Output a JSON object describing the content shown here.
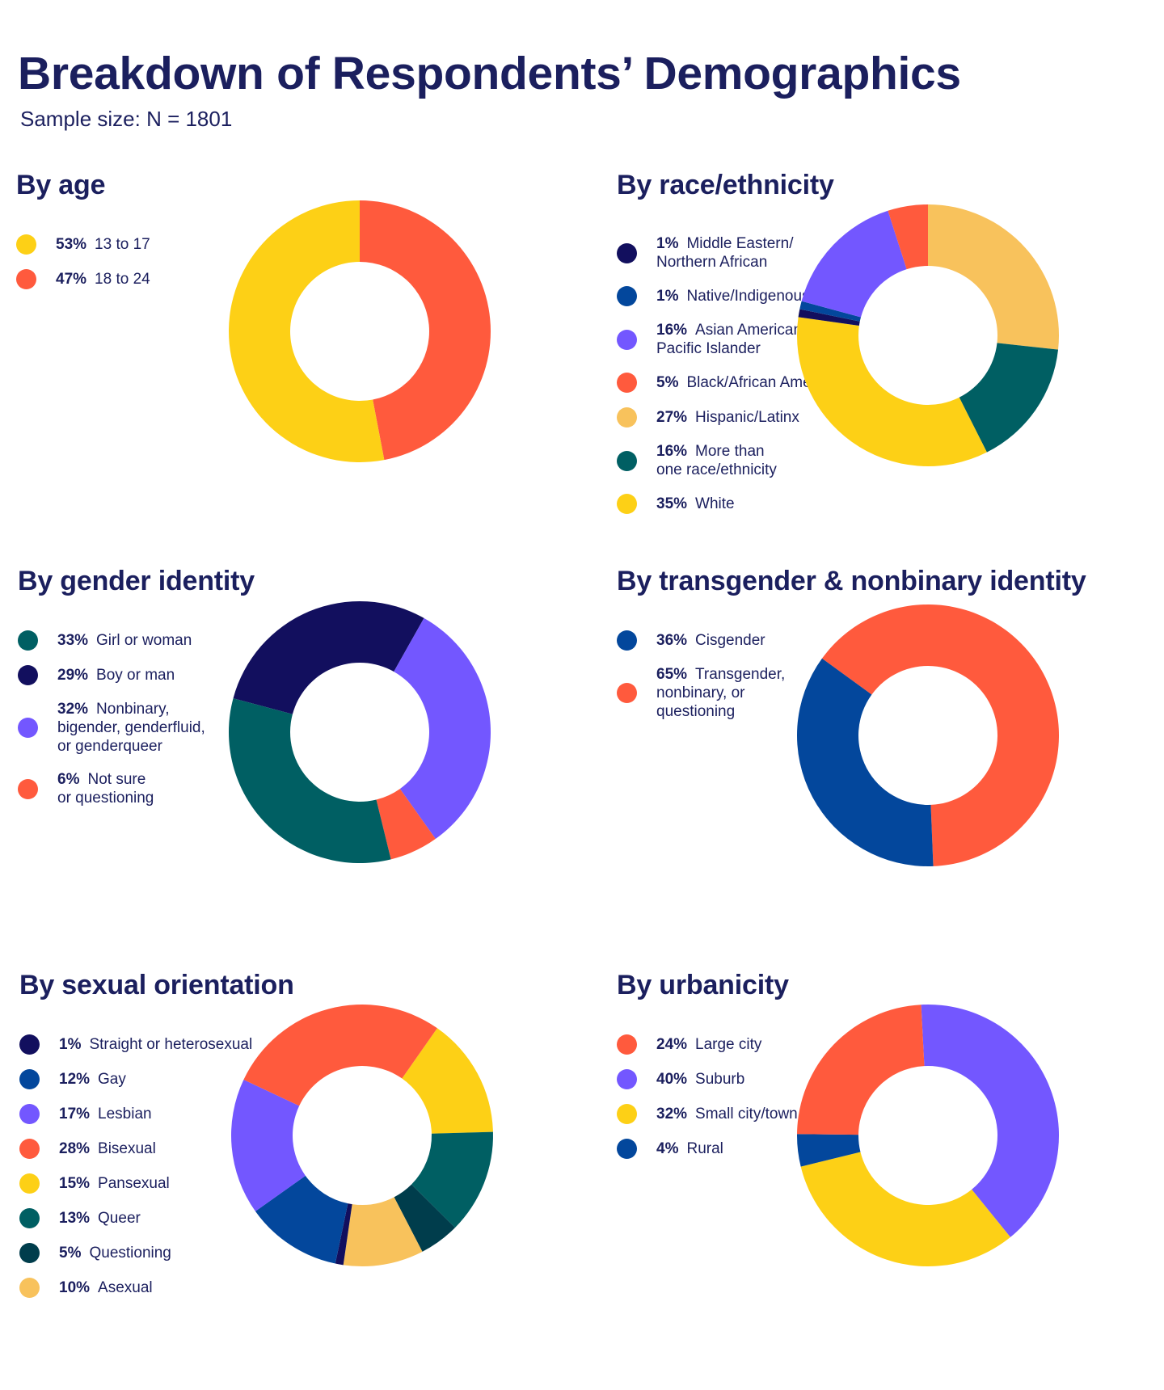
{
  "title": "Breakdown of Respondents’ Demographics",
  "subtitle": "Sample size: N = 1801",
  "chart_data": [
    {
      "type": "pie",
      "title": "By age",
      "legend_position": "left",
      "slices": [
        {
          "pct": "53%",
          "label": "13 to 17",
          "value": 53,
          "color": "#FDD016"
        },
        {
          "pct": "47%",
          "label": "18 to 24",
          "value": 47,
          "color": "#FF5A3D"
        }
      ],
      "draw_order": [
        1,
        0
      ]
    },
    {
      "type": "pie",
      "title": "By race/ethnicity",
      "legend_position": "left",
      "slices": [
        {
          "pct": "1%",
          "label": "Middle Eastern/\nNorthern African",
          "value": 1,
          "color": "#120F5E"
        },
        {
          "pct": "1%",
          "label": "Native/Indigenous",
          "value": 1,
          "color": "#03479C"
        },
        {
          "pct": "16%",
          "label": "Asian American/\nPacific Islander",
          "value": 16,
          "color": "#7357FF"
        },
        {
          "pct": "5%",
          "label": "Black/African American",
          "value": 5,
          "color": "#FF5A3D"
        },
        {
          "pct": "27%",
          "label": "Hispanic/Latinx",
          "value": 27,
          "color": "#F8C25C"
        },
        {
          "pct": "16%",
          "label": "More than\none race/ethnicity",
          "value": 16,
          "color": "#005F63"
        },
        {
          "pct": "35%",
          "label": "White",
          "value": 35,
          "color": "#FDD016"
        }
      ],
      "draw_order": [
        4,
        5,
        6,
        0,
        1,
        2,
        3
      ]
    },
    {
      "type": "pie",
      "title": "By gender identity",
      "legend_position": "left",
      "slices": [
        {
          "pct": "33%",
          "label": "Girl or woman",
          "value": 33,
          "color": "#005F63"
        },
        {
          "pct": "29%",
          "label": "Boy or man",
          "value": 29,
          "color": "#120F5E"
        },
        {
          "pct": "32%",
          "label": "Nonbinary,\nbigender, genderfluid,\nor genderqueer",
          "value": 32,
          "color": "#7357FF"
        },
        {
          "pct": "6%",
          "label": "Not sure\nor questioning",
          "value": 6,
          "color": "#FF5A3D"
        }
      ],
      "start_angle": -75,
      "draw_order": [
        1,
        2,
        3,
        0
      ]
    },
    {
      "type": "pie",
      "title": "By transgender & nonbinary identity",
      "legend_position": "left",
      "slices": [
        {
          "pct": "36%",
          "label": "Cisgender",
          "value": 36,
          "color": "#03479C"
        },
        {
          "pct": "65%",
          "label": "Transgender,\nnonbinary, or\nquestioning",
          "value": 65,
          "color": "#FF5A3D"
        }
      ],
      "start_angle": -54,
      "draw_order": [
        1,
        0
      ]
    },
    {
      "type": "pie",
      "title": "By sexual orientation",
      "legend_position": "left",
      "slices": [
        {
          "pct": "1%",
          "label": "Straight or heterosexual",
          "value": 1,
          "color": "#120F5E"
        },
        {
          "pct": "12%",
          "label": "Gay",
          "value": 12,
          "color": "#03479C"
        },
        {
          "pct": "17%",
          "label": "Lesbian",
          "value": 17,
          "color": "#7357FF"
        },
        {
          "pct": "28%",
          "label": "Bisexual",
          "value": 28,
          "color": "#FF5A3D"
        },
        {
          "pct": "15%",
          "label": "Pansexual",
          "value": 15,
          "color": "#FDD016"
        },
        {
          "pct": "13%",
          "label": "Queer",
          "value": 13,
          "color": "#005F63"
        },
        {
          "pct": "5%",
          "label": "Questioning",
          "value": 5,
          "color": "#003D4C"
        },
        {
          "pct": "10%",
          "label": "Asexual",
          "value": 10,
          "color": "#F8C25C"
        }
      ],
      "start_angle": 35,
      "draw_order": [
        4,
        5,
        6,
        7,
        0,
        1,
        2,
        3
      ]
    },
    {
      "type": "pie",
      "title": "By urbanicity",
      "legend_position": "left",
      "slices": [
        {
          "pct": "24%",
          "label": "Large city",
          "value": 24,
          "color": "#FF5A3D"
        },
        {
          "pct": "40%",
          "label": "Suburb",
          "value": 40,
          "color": "#7357FF"
        },
        {
          "pct": "32%",
          "label": "Small city/town",
          "value": 32,
          "color": "#FDD016"
        },
        {
          "pct": "4%",
          "label": "Rural",
          "value": 4,
          "color": "#03479C"
        }
      ],
      "start_angle": -3,
      "draw_order": [
        1,
        2,
        3,
        0
      ]
    }
  ]
}
